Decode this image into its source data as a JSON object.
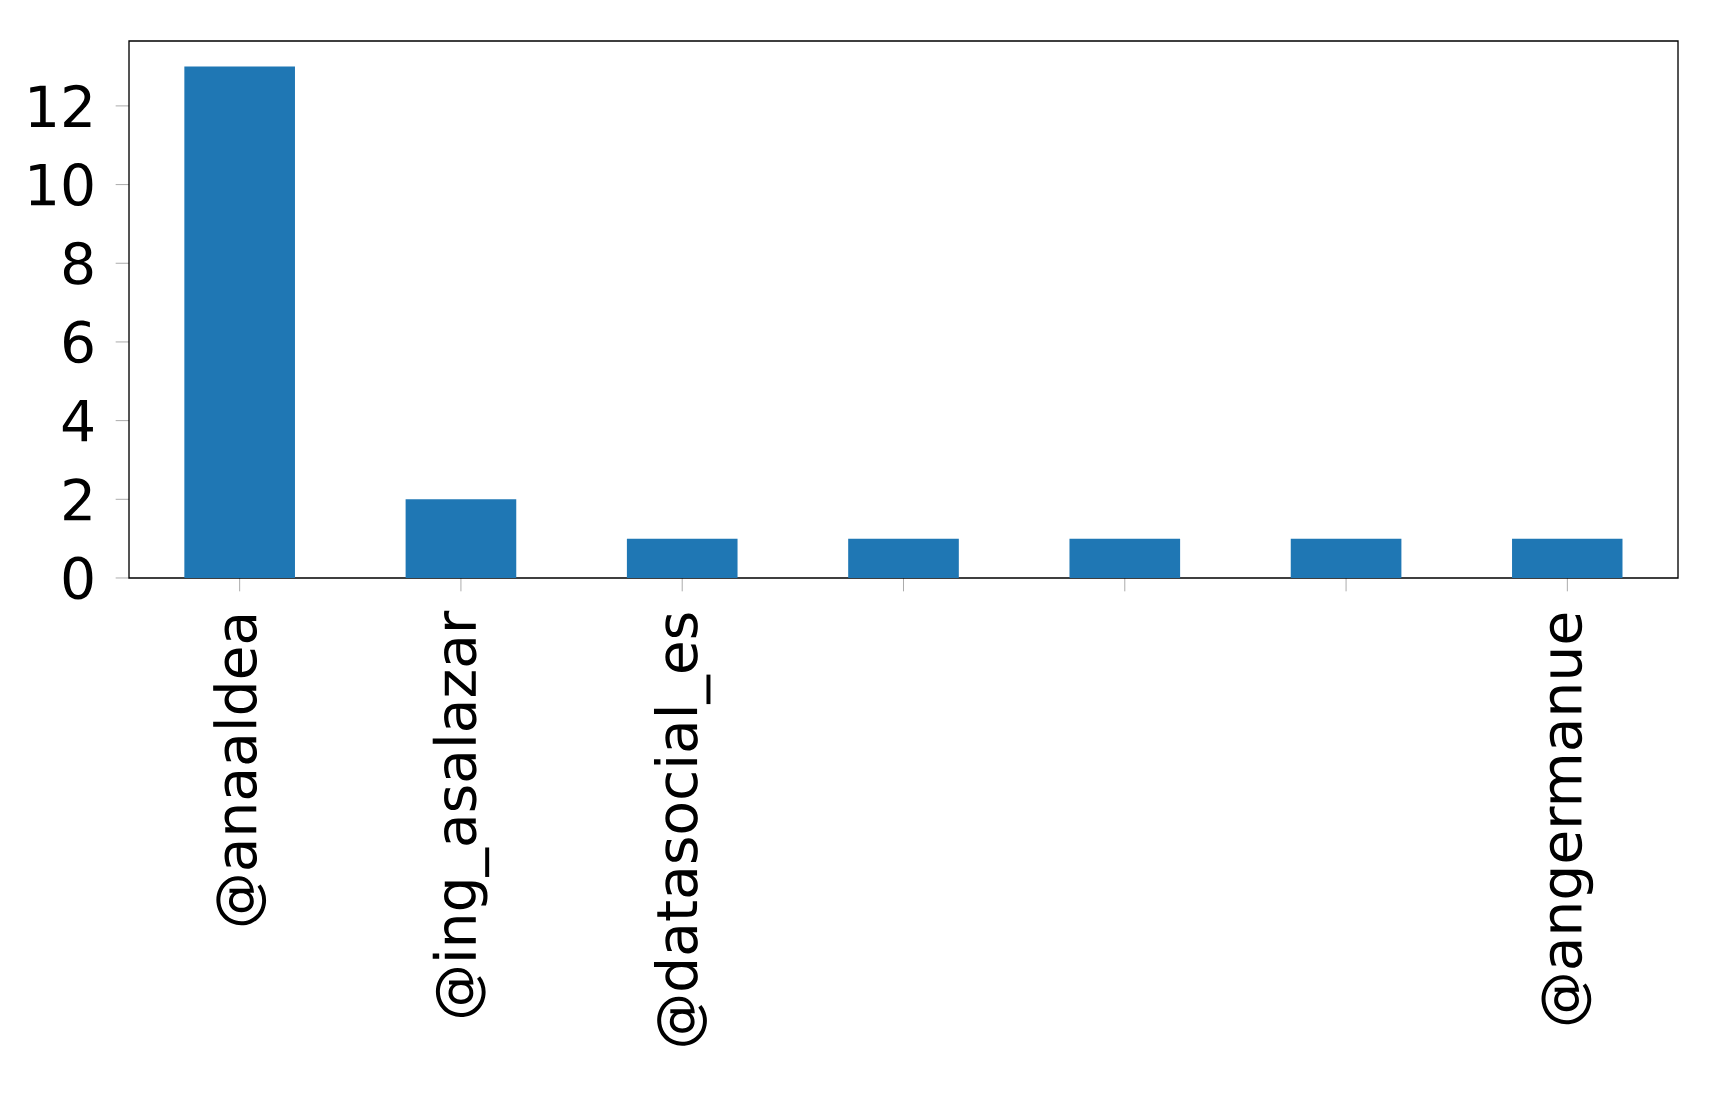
{
  "chart_data": {
    "type": "bar",
    "categories": [
      "@anaaldea",
      "@ing_asalazar",
      "@datasocial_es",
      null,
      null,
      null,
      "@angermanue"
    ],
    "values": [
      13,
      2,
      1,
      1,
      1,
      1,
      1
    ],
    "color": "#1f77b4",
    "ylim": [
      0,
      13.65
    ],
    "yticks": [
      0,
      2,
      4,
      6,
      8,
      10,
      12
    ]
  }
}
